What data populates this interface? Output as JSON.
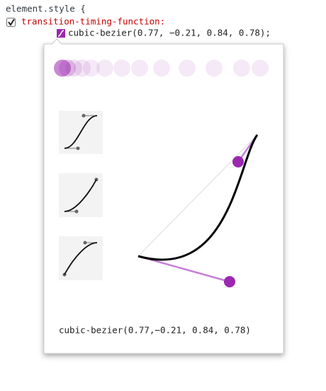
{
  "code": {
    "selector": "element.style {",
    "property": "transition-timing-function:",
    "value": "cubic-bezier(0.77, −0.21, 0.84, 0.78);"
  },
  "editor": {
    "text": "cubic-bezier(0.77,−0.21, 0.84, 0.78)"
  }
}
